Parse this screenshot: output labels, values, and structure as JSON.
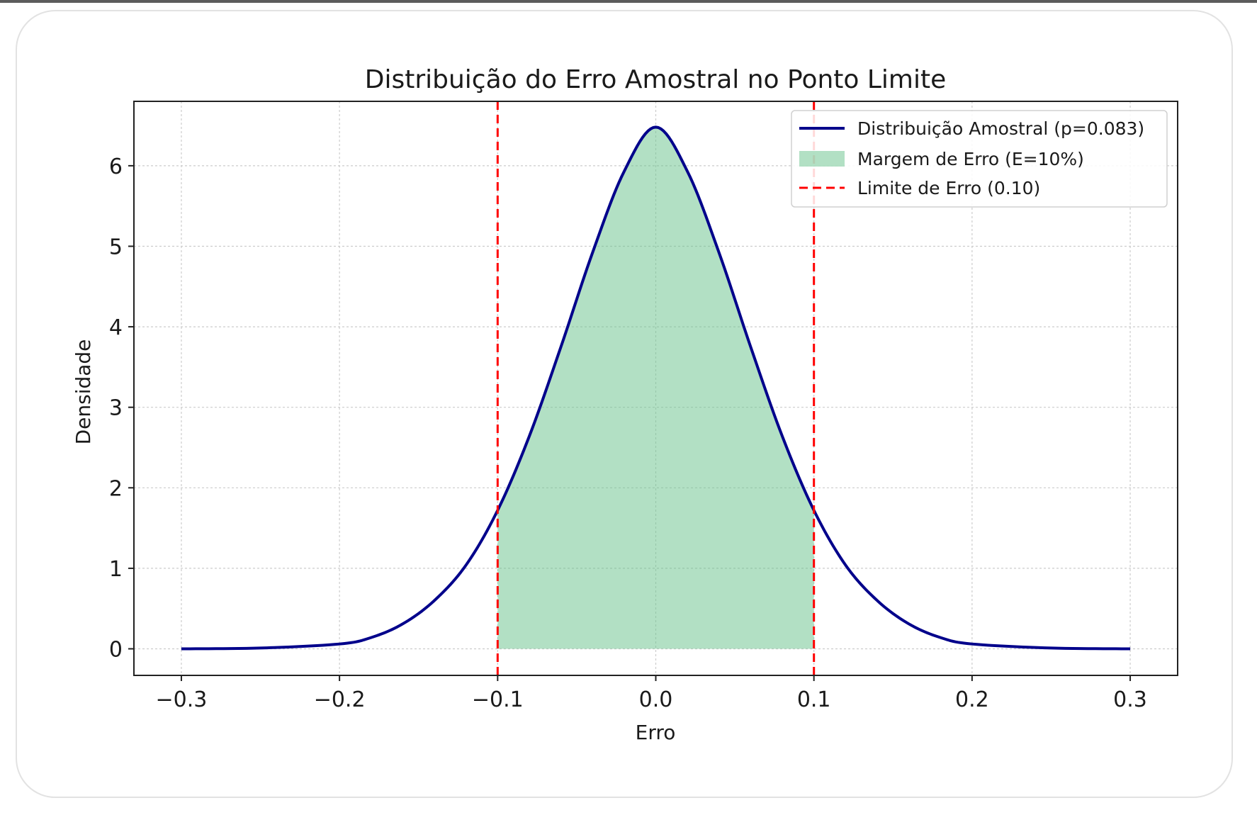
{
  "chart_data": {
    "type": "line",
    "title": "Distribuição do Erro Amostral no Ponto Limite",
    "xlabel": "Erro",
    "ylabel": "Densidade",
    "xlim": [
      -0.33,
      0.33
    ],
    "ylim": [
      -0.33,
      6.8
    ],
    "xticks": [
      -0.3,
      -0.2,
      -0.1,
      0.0,
      0.1,
      0.2,
      0.3
    ],
    "xtick_labels": [
      "−0.3",
      "−0.2",
      "−0.1",
      "0.0",
      "0.1",
      "0.2",
      "0.3"
    ],
    "yticks": [
      0,
      1,
      2,
      3,
      4,
      5,
      6
    ],
    "ytick_labels": [
      "0",
      "1",
      "2",
      "3",
      "4",
      "5",
      "6"
    ],
    "grid": true,
    "legend_position": "top-right",
    "x": [
      -0.3,
      -0.25,
      -0.2,
      -0.18,
      -0.16,
      -0.14,
      -0.12,
      -0.1,
      -0.08,
      -0.06,
      -0.04,
      -0.02,
      0.0,
      0.02,
      0.04,
      0.06,
      0.08,
      0.1,
      0.12,
      0.14,
      0.16,
      0.18,
      0.2,
      0.25,
      0.3
    ],
    "series": [
      {
        "name": "Distribuição Amostral (p=0.083)",
        "kind": "line",
        "color": "#00008b",
        "y": [
          0.0,
          0.01,
          0.06,
          0.14,
          0.31,
          0.6,
          1.04,
          1.72,
          2.64,
          3.75,
          4.92,
          5.93,
          6.48,
          5.93,
          4.92,
          3.75,
          2.64,
          1.72,
          1.04,
          0.6,
          0.31,
          0.14,
          0.06,
          0.01,
          0.0
        ]
      },
      {
        "name": "Margem de Erro (E=10%)",
        "kind": "fill",
        "color": "#66c28a",
        "x_range": [
          -0.1,
          0.1
        ]
      },
      {
        "name": "Limite de Erro (0.10)",
        "kind": "vline",
        "style": "dashed",
        "color": "#ff0000",
        "x_values": [
          -0.1,
          0.1
        ]
      }
    ]
  }
}
